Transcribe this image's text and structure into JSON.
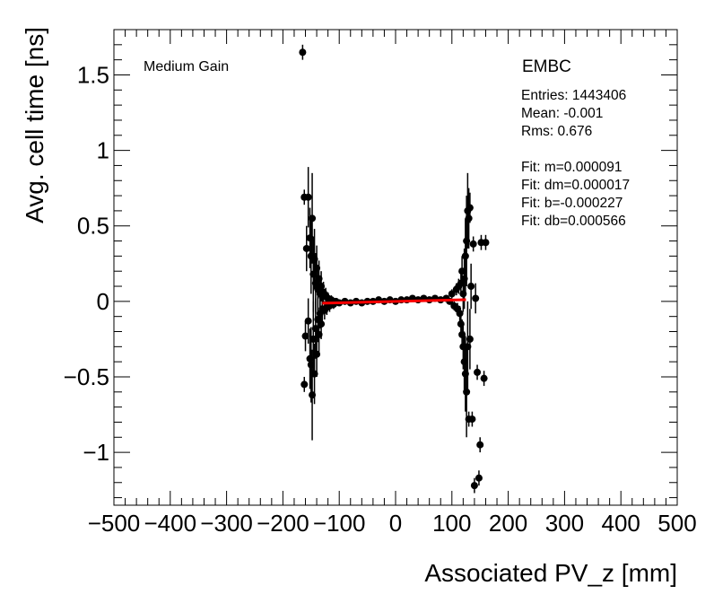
{
  "chart_data": {
    "type": "scatter",
    "title": "",
    "xlabel": "Associated PV_z [mm]",
    "ylabel": "Avg. cell time [ns]",
    "xlim": [
      -500,
      500
    ],
    "ylim": [
      -1.35,
      1.8
    ],
    "xticks": [
      -500,
      -400,
      -300,
      -200,
      -100,
      0,
      100,
      200,
      300,
      400,
      500
    ],
    "xtick_labels": [
      "−500",
      "−400",
      "−300",
      "−200",
      "−100",
      "0",
      "100",
      "200",
      "300",
      "400",
      "500"
    ],
    "yticks": [
      -1,
      -0.5,
      0,
      0.5,
      1,
      1.5
    ],
    "ytick_labels": [
      "−1",
      "−0.5",
      "0",
      "0.5",
      "1",
      "1.5"
    ],
    "grid": false,
    "annotations": {
      "gain": "Medium Gain",
      "partition": "EMBC",
      "stats": [
        "Entries: 1443406",
        "Mean: -0.001",
        "Rms: 0.676"
      ],
      "fit": [
        "Fit: m=0.000091",
        "Fit: dm=0.000017",
        "Fit: b=-0.000227",
        "Fit: db=0.000566"
      ]
    },
    "fit_line": {
      "color": "#ff0000",
      "x": [
        -130,
        125
      ],
      "y": [
        -0.012,
        0.011
      ]
    },
    "series": [
      {
        "marker_color": "#000000",
        "points": [
          [
            -165,
            1.65,
            0.05
          ],
          [
            -162,
            0.69,
            0.05
          ],
          [
            -162,
            -0.55,
            0.05
          ],
          [
            -160,
            -0.23,
            0.1
          ],
          [
            -158,
            0.35,
            0.15
          ],
          [
            -155,
            0.69,
            0.2
          ],
          [
            -155,
            -0.13,
            0.15
          ],
          [
            -152,
            0.42,
            0.2
          ],
          [
            -152,
            -0.38,
            0.2
          ],
          [
            -150,
            0.3,
            0.25
          ],
          [
            -150,
            -0.42,
            0.25
          ],
          [
            -148,
            0.55,
            0.3
          ],
          [
            -148,
            -0.62,
            0.3
          ],
          [
            -146,
            0.18,
            0.25
          ],
          [
            -146,
            -0.25,
            0.25
          ],
          [
            -144,
            0.28,
            0.2
          ],
          [
            -144,
            -0.48,
            0.2
          ],
          [
            -142,
            0.12,
            0.2
          ],
          [
            -142,
            -0.18,
            0.2
          ],
          [
            -140,
            0.22,
            0.15
          ],
          [
            -140,
            -0.35,
            0.15
          ],
          [
            -138,
            0.08,
            0.15
          ],
          [
            -138,
            -0.12,
            0.15
          ],
          [
            -136,
            0.15,
            0.12
          ],
          [
            -136,
            -0.22,
            0.12
          ],
          [
            -134,
            0.05,
            0.1
          ],
          [
            -134,
            -0.08,
            0.1
          ],
          [
            -132,
            0.1,
            0.1
          ],
          [
            -132,
            -0.15,
            0.1
          ],
          [
            -130,
            0.03,
            0.08
          ],
          [
            -130,
            -0.05,
            0.08
          ],
          [
            -128,
            0.06,
            0.07
          ],
          [
            -126,
            -0.06,
            0.06
          ],
          [
            -124,
            0.04,
            0.05
          ],
          [
            -122,
            -0.04,
            0.05
          ],
          [
            -120,
            0.02,
            0.04
          ],
          [
            -117,
            -0.03,
            0.04
          ],
          [
            -114,
            0.01,
            0.03
          ],
          [
            -110,
            -0.02,
            0.03
          ],
          [
            -106,
            0.0,
            0.02
          ],
          [
            -100,
            -0.01,
            0.02
          ],
          [
            -90,
            0.0,
            0.015
          ],
          [
            -80,
            -0.01,
            0.015
          ],
          [
            -70,
            0.0,
            0.01
          ],
          [
            -60,
            -0.01,
            0.01
          ],
          [
            -50,
            0.0,
            0.01
          ],
          [
            -40,
            0.0,
            0.01
          ],
          [
            -30,
            0.01,
            0.01
          ],
          [
            -20,
            0.0,
            0.01
          ],
          [
            -10,
            0.01,
            0.01
          ],
          [
            0,
            0.0,
            0.01
          ],
          [
            10,
            0.01,
            0.01
          ],
          [
            20,
            0.01,
            0.01
          ],
          [
            30,
            0.02,
            0.01
          ],
          [
            40,
            0.01,
            0.01
          ],
          [
            50,
            0.02,
            0.01
          ],
          [
            60,
            0.01,
            0.015
          ],
          [
            70,
            0.02,
            0.015
          ],
          [
            80,
            0.01,
            0.02
          ],
          [
            90,
            0.02,
            0.02
          ],
          [
            96,
            0.0,
            0.02
          ],
          [
            100,
            0.05,
            0.03
          ],
          [
            104,
            -0.03,
            0.03
          ],
          [
            108,
            0.08,
            0.04
          ],
          [
            110,
            -0.05,
            0.04
          ],
          [
            112,
            0.1,
            0.05
          ],
          [
            114,
            -0.08,
            0.05
          ],
          [
            116,
            0.12,
            0.07
          ],
          [
            116,
            -0.15,
            0.07
          ],
          [
            118,
            0.2,
            0.1
          ],
          [
            118,
            -0.22,
            0.1
          ],
          [
            120,
            0.05,
            0.12
          ],
          [
            120,
            -0.3,
            0.15
          ],
          [
            122,
            0.15,
            0.2
          ],
          [
            122,
            -0.4,
            0.2
          ],
          [
            124,
            0.3,
            0.25
          ],
          [
            124,
            -0.48,
            0.25
          ],
          [
            126,
            0.4,
            0.3
          ],
          [
            126,
            -0.6,
            0.3
          ],
          [
            128,
            0.6,
            0.25
          ],
          [
            128,
            -0.3,
            0.3
          ],
          [
            130,
            0.55,
            0.2
          ],
          [
            130,
            -0.78,
            0.05
          ],
          [
            132,
            0.62,
            0.1
          ],
          [
            132,
            -0.25,
            0.2
          ],
          [
            134,
            0.1,
            0.15
          ],
          [
            136,
            -0.78,
            0.05
          ],
          [
            138,
            0.38,
            0.05
          ],
          [
            140,
            -1.22,
            0.05
          ],
          [
            142,
            0.02,
            0.1
          ],
          [
            145,
            -0.47,
            0.05
          ],
          [
            148,
            -1.17,
            0.05
          ],
          [
            150,
            -0.95,
            0.05
          ],
          [
            152,
            0.39,
            0.05
          ],
          [
            157,
            -0.51,
            0.05
          ],
          [
            160,
            0.39,
            0.05
          ]
        ]
      }
    ]
  }
}
